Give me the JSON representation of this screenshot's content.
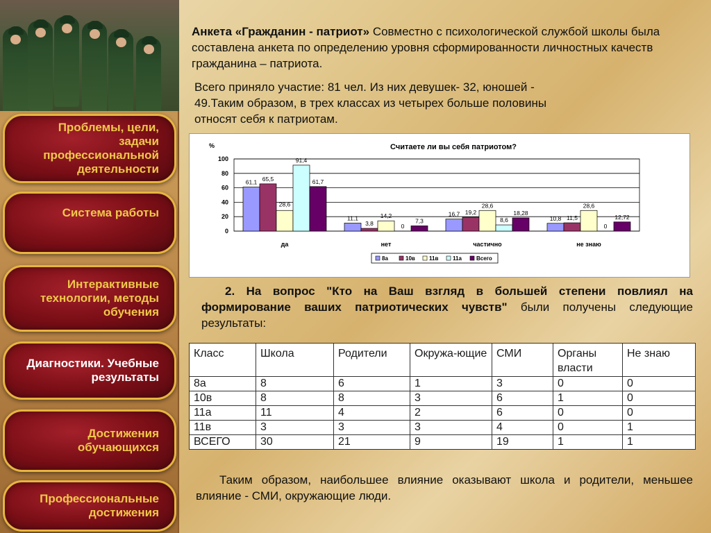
{
  "sidebar": {
    "items": [
      {
        "label": "Проблемы, цели, задачи профессиональной деятельности"
      },
      {
        "label": "Система работы"
      },
      {
        "label": "Интерактивные технологии, методы обучения"
      },
      {
        "label": "Диагностики. Учебные результаты"
      },
      {
        "label": "Достижения обучающихся"
      },
      {
        "label": "Профессиональные достижения"
      }
    ],
    "active_index": 3
  },
  "intro": {
    "bold": "Анкета «Гражданин - патриот»",
    "text": " Совместно с психологической службой школы была составлена анкета по определению уровня сформированности личностных качеств гражданина – патриота."
  },
  "participation": "Всего приняло участие: 81 чел. Из них девушек- 32, юношей - 49.Таким образом, в трех классах из четырех больше половины относят себя к патриотам.",
  "question2": {
    "prefix": "2. На вопрос \"Кто на Ваш взгляд в большей степени повлиял на формирование ваших патриотических чувств\"",
    "suffix": " были получены следующие результаты:"
  },
  "conclusion": "Таким образом, наибольшее влияние оказывают школа и родители, меньшее влияние - СМИ, окружающие люди.",
  "table": {
    "headers": [
      "Класс",
      "Школа",
      "Родители",
      "Окружа-ющие",
      "СМИ",
      "Органы власти",
      "Не знаю"
    ],
    "rows": [
      [
        "8а",
        "8",
        "6",
        "1",
        "3",
        "0",
        "0"
      ],
      [
        "10в",
        "8",
        "8",
        "3",
        "6",
        "1",
        "0"
      ],
      [
        "11а",
        "11",
        "4",
        "2",
        "6",
        "0",
        "0"
      ],
      [
        "11в",
        "3",
        "3",
        "3",
        "4",
        "0",
        "1"
      ],
      [
        "ВСЕГО",
        "30",
        "21",
        "9",
        "19",
        "1",
        "1"
      ]
    ]
  },
  "chart_data": {
    "type": "bar",
    "title": "Считаете ли вы себя патриотом?",
    "ylabel": "%",
    "ylim": [
      0,
      100
    ],
    "yticks": [
      0,
      20,
      40,
      60,
      80,
      100
    ],
    "categories": [
      "да",
      "нет",
      "частично",
      "не знаю"
    ],
    "series": [
      {
        "name": "8а",
        "color": "#9999ff",
        "values": [
          61.1,
          11.1,
          16.7,
          10.8
        ],
        "labels": [
          "61,1",
          "11,1",
          "16,7",
          "10,8"
        ]
      },
      {
        "name": "10в",
        "color": "#993366",
        "values": [
          65.5,
          3.8,
          19.2,
          11.5
        ],
        "labels": [
          "65,5",
          "3,8",
          "19,2",
          "11,5"
        ]
      },
      {
        "name": "11в",
        "color": "#ffffcc",
        "values": [
          28.6,
          14.2,
          28.6,
          28.6
        ],
        "labels": [
          "28,6",
          "14,2",
          "28,6",
          "28,6"
        ]
      },
      {
        "name": "11а",
        "color": "#ccffff",
        "values": [
          91.4,
          0,
          8.6,
          0
        ],
        "labels": [
          "91,4",
          "0",
          "8,6",
          "0"
        ]
      },
      {
        "name": "Всего",
        "color": "#660066",
        "values": [
          61.7,
          7.3,
          18.28,
          12.72
        ],
        "labels": [
          "61,7",
          "7,3",
          "18,28",
          "12,72"
        ]
      }
    ],
    "grid": true,
    "legend": "bottom"
  }
}
